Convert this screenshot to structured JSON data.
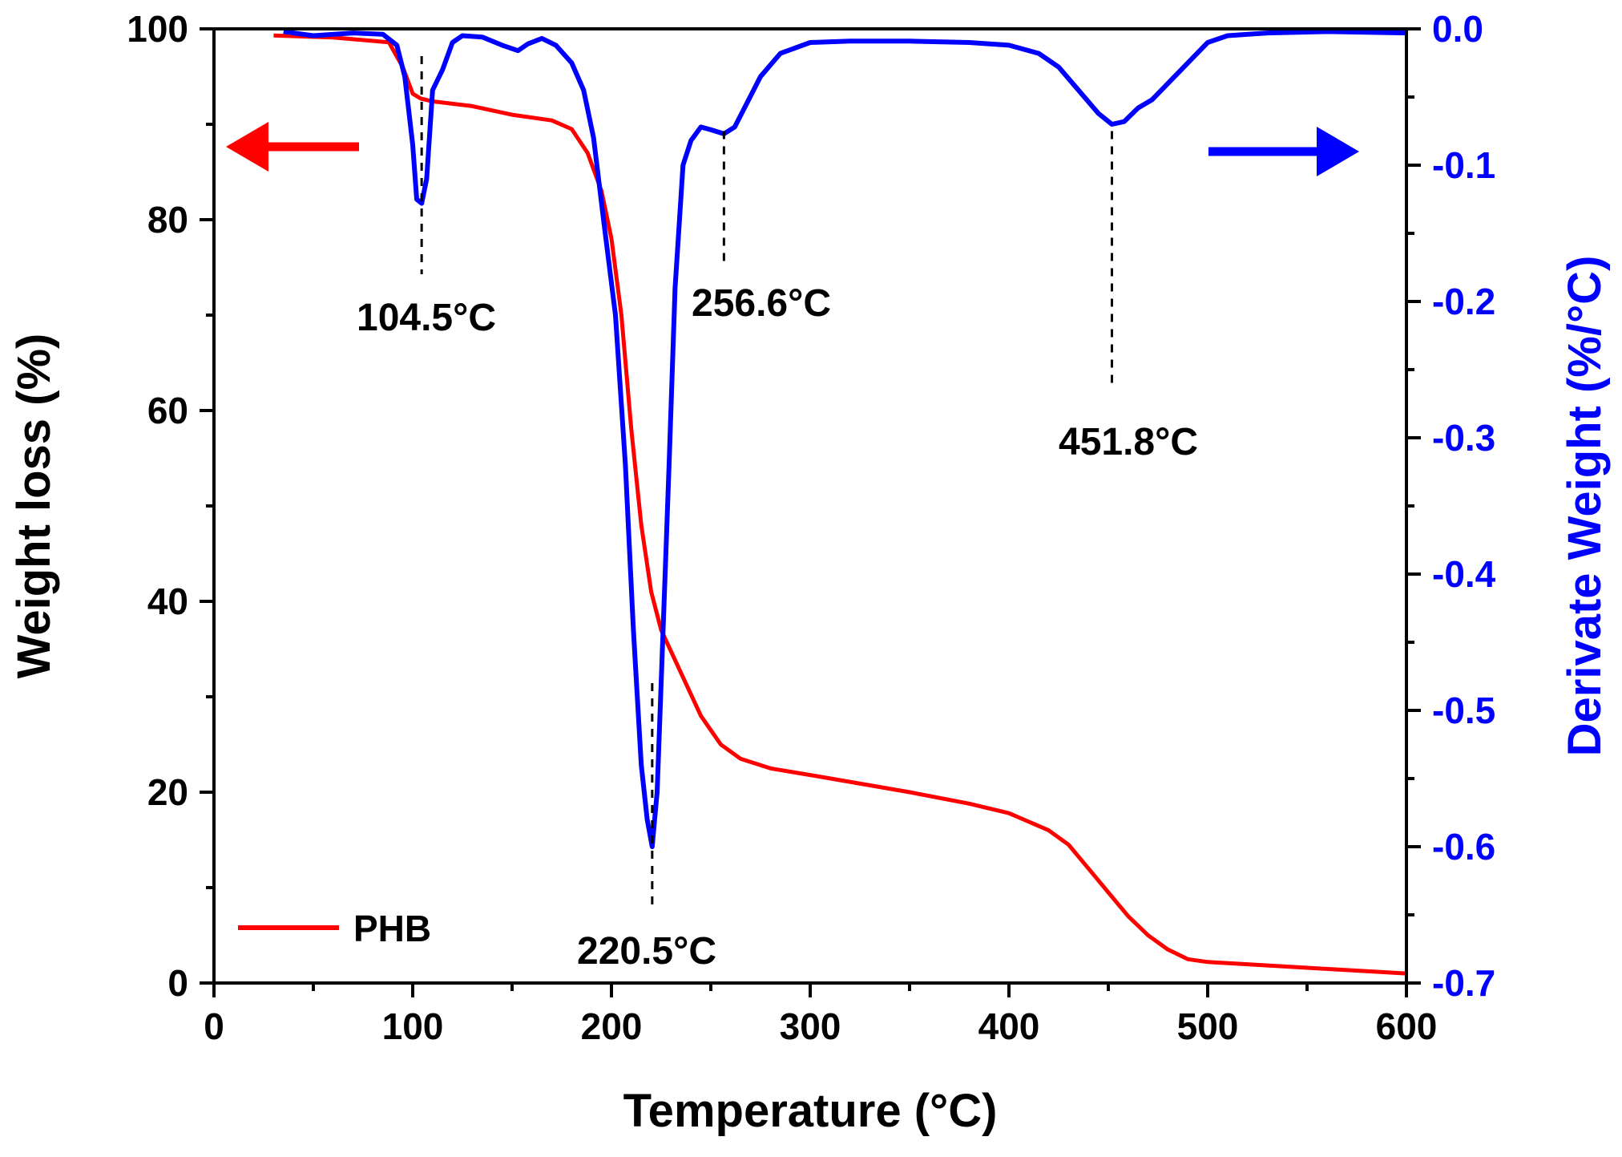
{
  "chart_data": {
    "type": "line",
    "title": "",
    "xlabel": "Temperature (°C)",
    "ylabel_left": "Weight loss (%)",
    "ylabel_right": "Derivate Weight (%/°C)",
    "xlim": [
      0,
      600
    ],
    "ylim_left": [
      0,
      100
    ],
    "ylim_right": [
      -0.7,
      0.0
    ],
    "x_ticks": [
      0,
      100,
      200,
      300,
      400,
      500,
      600
    ],
    "x_tick_labels": [
      "0",
      "100",
      "200",
      "300",
      "400",
      "500",
      "600"
    ],
    "y_left_ticks": [
      0,
      20,
      40,
      60,
      80,
      100
    ],
    "y_left_tick_labels": [
      "0",
      "20",
      "40",
      "60",
      "80",
      "100"
    ],
    "y_right_ticks": [
      -0.7,
      -0.6,
      -0.5,
      -0.4,
      -0.3,
      -0.2,
      -0.1,
      0.0
    ],
    "y_right_tick_labels": [
      "-0.7",
      "-0.6",
      "-0.5",
      "-0.4",
      "-0.3",
      "-0.2",
      "-0.1",
      "0.0"
    ],
    "grid": false,
    "legend": {
      "position": "bottom-left",
      "entries": [
        {
          "label": "PHB",
          "color": "#ff0000"
        }
      ]
    },
    "colors": {
      "weight": "#ff0000",
      "derivative": "#0000ff",
      "axis": "#000000",
      "annotation": "#000000"
    },
    "series": [
      {
        "name": "PHB",
        "axis": "left",
        "color": "#ff0000",
        "x": [
          30,
          60,
          88,
          95,
          100,
          104,
          110,
          130,
          150,
          170,
          180,
          188,
          195,
          200,
          205,
          210,
          215,
          220,
          225,
          235,
          245,
          255,
          265,
          280,
          300,
          350,
          380,
          400,
          420,
          430,
          440,
          450,
          460,
          470,
          480,
          490,
          500,
          550,
          600
        ],
        "values": [
          99.3,
          99.1,
          98.6,
          96.0,
          93.2,
          92.7,
          92.4,
          91.9,
          91.0,
          90.4,
          89.5,
          87.0,
          83.0,
          78.0,
          70.0,
          58.0,
          48.0,
          41.0,
          37.0,
          32.5,
          28.0,
          25.0,
          23.5,
          22.5,
          21.8,
          20.0,
          18.8,
          17.8,
          16.0,
          14.5,
          12.0,
          9.5,
          7.0,
          5.0,
          3.5,
          2.5,
          2.2,
          1.6,
          1.0
        ]
      },
      {
        "name": "Derivative",
        "axis": "right",
        "color": "#0000ff",
        "x": [
          35,
          50,
          70,
          85,
          92,
          96,
          100,
          102,
          104.5,
          107,
          110,
          115,
          120,
          125,
          135,
          145,
          153,
          158,
          165,
          172,
          180,
          186,
          191,
          196,
          202,
          207,
          211,
          215,
          218,
          220.5,
          223,
          226,
          229,
          232,
          236,
          240,
          245,
          250,
          256.6,
          262,
          268,
          275,
          285,
          300,
          320,
          350,
          380,
          400,
          415,
          425,
          435,
          445,
          451.8,
          458,
          465,
          472,
          480,
          490,
          500,
          510,
          530,
          560,
          600
        ],
        "values": [
          -0.002,
          -0.005,
          -0.003,
          -0.004,
          -0.012,
          -0.035,
          -0.085,
          -0.125,
          -0.128,
          -0.11,
          -0.045,
          -0.03,
          -0.01,
          -0.005,
          -0.006,
          -0.012,
          -0.016,
          -0.011,
          -0.007,
          -0.012,
          -0.025,
          -0.045,
          -0.08,
          -0.14,
          -0.21,
          -0.32,
          -0.44,
          -0.54,
          -0.58,
          -0.6,
          -0.56,
          -0.44,
          -0.32,
          -0.19,
          -0.1,
          -0.082,
          -0.072,
          -0.074,
          -0.077,
          -0.072,
          -0.055,
          -0.035,
          -0.018,
          -0.01,
          -0.009,
          -0.009,
          -0.01,
          -0.012,
          -0.018,
          -0.028,
          -0.045,
          -0.062,
          -0.07,
          -0.068,
          -0.058,
          -0.052,
          -0.04,
          -0.025,
          -0.01,
          -0.005,
          -0.003,
          -0.002,
          -0.003
        ]
      }
    ],
    "annotations": [
      {
        "label": "104.5°C",
        "x": 104.5
      },
      {
        "label": "220.5°C",
        "x": 220.5
      },
      {
        "label": "256.6°C",
        "x": 256.6
      },
      {
        "label": "451.8°C",
        "x": 451.8
      }
    ]
  }
}
